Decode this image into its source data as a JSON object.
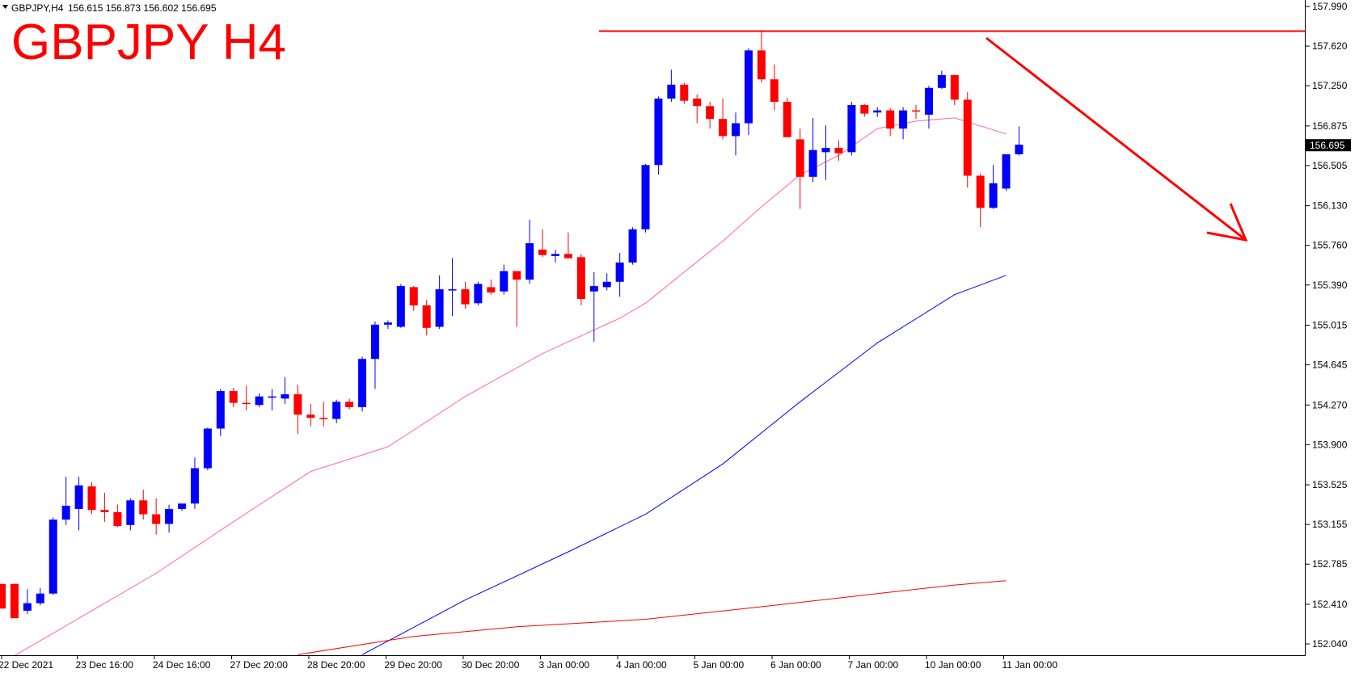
{
  "header": {
    "symbol_info": "GBPJPY,H4",
    "ohlc_text": "156.615 156.873 156.602 156.695",
    "title": "GBPJPY H4"
  },
  "colors": {
    "bull": "#0000ff",
    "bear": "#ff0000",
    "ma_fast": "#ff66aa",
    "ma_mid": "#0000ff",
    "ma_slow": "#ff0000",
    "annotation": "#ff0000",
    "price_tag_bg": "#000000",
    "price_tag_fg": "#ffffff"
  },
  "chart_data": {
    "type": "candlestick",
    "title": "GBPJPY H4",
    "ylim": [
      151.96,
      158.05
    ],
    "y_ticks": [
      "157.990",
      "157.620",
      "157.250",
      "156.875",
      "156.505",
      "156.130",
      "155.760",
      "155.390",
      "155.015",
      "154.645",
      "154.270",
      "153.900",
      "153.525",
      "153.155",
      "152.785",
      "152.410",
      "152.040"
    ],
    "x_ticks": [
      "22 Dec 2021",
      "23 Dec 16:00",
      "24 Dec 16:00",
      "27 Dec 20:00",
      "28 Dec 20:00",
      "29 Dec 20:00",
      "30 Dec 20:00",
      "3 Jan 00:00",
      "4 Jan 00:00",
      "5 Jan 00:00",
      "6 Jan 00:00",
      "7 Jan 00:00",
      "10 Jan 00:00",
      "11 Jan 00:00"
    ],
    "current_price": "156.695",
    "candles": [
      {
        "o": 152.6,
        "h": 152.6,
        "l": 152.37,
        "c": 152.37
      },
      {
        "o": 152.6,
        "h": 152.6,
        "l": 152.28,
        "c": 152.28
      },
      {
        "o": 152.35,
        "h": 152.55,
        "l": 152.32,
        "c": 152.42
      },
      {
        "o": 152.42,
        "h": 152.56,
        "l": 152.4,
        "c": 152.51
      },
      {
        "o": 152.51,
        "h": 153.22,
        "l": 152.5,
        "c": 153.2
      },
      {
        "o": 153.2,
        "h": 153.6,
        "l": 153.15,
        "c": 153.33
      },
      {
        "o": 153.3,
        "h": 153.6,
        "l": 153.1,
        "c": 153.52
      },
      {
        "o": 153.51,
        "h": 153.55,
        "l": 153.25,
        "c": 153.29
      },
      {
        "o": 153.29,
        "h": 153.45,
        "l": 153.18,
        "c": 153.27
      },
      {
        "o": 153.27,
        "h": 153.34,
        "l": 153.13,
        "c": 153.14
      },
      {
        "o": 153.15,
        "h": 153.4,
        "l": 153.1,
        "c": 153.38
      },
      {
        "o": 153.38,
        "h": 153.48,
        "l": 153.2,
        "c": 153.25
      },
      {
        "o": 153.25,
        "h": 153.4,
        "l": 153.06,
        "c": 153.16
      },
      {
        "o": 153.16,
        "h": 153.34,
        "l": 153.08,
        "c": 153.3
      },
      {
        "o": 153.3,
        "h": 153.35,
        "l": 153.28,
        "c": 153.35
      },
      {
        "o": 153.35,
        "h": 153.78,
        "l": 153.3,
        "c": 153.68
      },
      {
        "o": 153.68,
        "h": 154.06,
        "l": 153.66,
        "c": 154.05
      },
      {
        "o": 154.05,
        "h": 154.42,
        "l": 153.98,
        "c": 154.4
      },
      {
        "o": 154.4,
        "h": 154.43,
        "l": 154.25,
        "c": 154.29
      },
      {
        "o": 154.29,
        "h": 154.45,
        "l": 154.22,
        "c": 154.28
      },
      {
        "o": 154.27,
        "h": 154.38,
        "l": 154.25,
        "c": 154.35
      },
      {
        "o": 154.35,
        "h": 154.42,
        "l": 154.22,
        "c": 154.35
      },
      {
        "o": 154.33,
        "h": 154.53,
        "l": 154.28,
        "c": 154.37
      },
      {
        "o": 154.37,
        "h": 154.46,
        "l": 154.0,
        "c": 154.18
      },
      {
        "o": 154.18,
        "h": 154.28,
        "l": 154.07,
        "c": 154.15
      },
      {
        "o": 154.15,
        "h": 154.3,
        "l": 154.07,
        "c": 154.14
      },
      {
        "o": 154.14,
        "h": 154.32,
        "l": 154.1,
        "c": 154.3
      },
      {
        "o": 154.3,
        "h": 154.33,
        "l": 154.23,
        "c": 154.25
      },
      {
        "o": 154.25,
        "h": 154.72,
        "l": 154.21,
        "c": 154.7
      },
      {
        "o": 154.7,
        "h": 155.05,
        "l": 154.42,
        "c": 155.02
      },
      {
        "o": 155.02,
        "h": 155.06,
        "l": 154.98,
        "c": 155.04
      },
      {
        "o": 155.0,
        "h": 155.4,
        "l": 154.99,
        "c": 155.38
      },
      {
        "o": 155.37,
        "h": 155.38,
        "l": 155.15,
        "c": 155.2
      },
      {
        "o": 155.2,
        "h": 155.25,
        "l": 154.92,
        "c": 154.99
      },
      {
        "o": 155.0,
        "h": 155.48,
        "l": 154.98,
        "c": 155.35
      },
      {
        "o": 155.35,
        "h": 155.64,
        "l": 155.1,
        "c": 155.35
      },
      {
        "o": 155.35,
        "h": 155.42,
        "l": 155.17,
        "c": 155.21
      },
      {
        "o": 155.22,
        "h": 155.42,
        "l": 155.2,
        "c": 155.4
      },
      {
        "o": 155.37,
        "h": 155.44,
        "l": 155.3,
        "c": 155.32
      },
      {
        "o": 155.33,
        "h": 155.58,
        "l": 155.3,
        "c": 155.52
      },
      {
        "o": 155.52,
        "h": 155.52,
        "l": 155.0,
        "c": 155.44
      },
      {
        "o": 155.44,
        "h": 156.0,
        "l": 155.4,
        "c": 155.78
      },
      {
        "o": 155.72,
        "h": 155.91,
        "l": 155.65,
        "c": 155.67
      },
      {
        "o": 155.66,
        "h": 155.72,
        "l": 155.6,
        "c": 155.68
      },
      {
        "o": 155.68,
        "h": 155.88,
        "l": 155.64,
        "c": 155.64
      },
      {
        "o": 155.65,
        "h": 155.68,
        "l": 155.2,
        "c": 155.26
      },
      {
        "o": 155.33,
        "h": 155.51,
        "l": 154.86,
        "c": 155.38
      },
      {
        "o": 155.37,
        "h": 155.5,
        "l": 155.34,
        "c": 155.42
      },
      {
        "o": 155.42,
        "h": 155.69,
        "l": 155.28,
        "c": 155.6
      },
      {
        "o": 155.6,
        "h": 155.93,
        "l": 155.58,
        "c": 155.91
      },
      {
        "o": 155.91,
        "h": 156.52,
        "l": 155.88,
        "c": 156.51
      },
      {
        "o": 156.51,
        "h": 157.15,
        "l": 156.42,
        "c": 157.13
      },
      {
        "o": 157.13,
        "h": 157.4,
        "l": 157.1,
        "c": 157.26
      },
      {
        "o": 157.26,
        "h": 157.28,
        "l": 157.08,
        "c": 157.11
      },
      {
        "o": 157.13,
        "h": 157.17,
        "l": 156.9,
        "c": 157.06
      },
      {
        "o": 157.06,
        "h": 157.1,
        "l": 156.85,
        "c": 156.94
      },
      {
        "o": 156.94,
        "h": 157.13,
        "l": 156.75,
        "c": 156.78
      },
      {
        "o": 156.78,
        "h": 157.0,
        "l": 156.6,
        "c": 156.9
      },
      {
        "o": 156.9,
        "h": 157.6,
        "l": 156.79,
        "c": 157.58
      },
      {
        "o": 157.58,
        "h": 157.76,
        "l": 157.28,
        "c": 157.31
      },
      {
        "o": 157.31,
        "h": 157.45,
        "l": 157.02,
        "c": 157.1
      },
      {
        "o": 157.1,
        "h": 157.14,
        "l": 156.77,
        "c": 156.77
      },
      {
        "o": 156.75,
        "h": 156.85,
        "l": 156.1,
        "c": 156.4
      },
      {
        "o": 156.4,
        "h": 156.95,
        "l": 156.35,
        "c": 156.65
      },
      {
        "o": 156.63,
        "h": 156.88,
        "l": 156.37,
        "c": 156.67
      },
      {
        "o": 156.67,
        "h": 156.74,
        "l": 156.55,
        "c": 156.62
      },
      {
        "o": 156.63,
        "h": 157.1,
        "l": 156.6,
        "c": 157.07
      },
      {
        "o": 157.07,
        "h": 157.08,
        "l": 156.96,
        "c": 156.99
      },
      {
        "o": 157.0,
        "h": 157.05,
        "l": 156.96,
        "c": 157.02
      },
      {
        "o": 157.02,
        "h": 157.04,
        "l": 156.78,
        "c": 156.85
      },
      {
        "o": 156.85,
        "h": 157.05,
        "l": 156.75,
        "c": 157.02
      },
      {
        "o": 157.02,
        "h": 157.07,
        "l": 156.94,
        "c": 157.01
      },
      {
        "o": 156.98,
        "h": 157.25,
        "l": 156.85,
        "c": 157.23
      },
      {
        "o": 157.23,
        "h": 157.39,
        "l": 157.22,
        "c": 157.35
      },
      {
        "o": 157.35,
        "h": 157.35,
        "l": 157.07,
        "c": 157.12
      },
      {
        "o": 157.12,
        "h": 157.19,
        "l": 156.3,
        "c": 156.41
      },
      {
        "o": 156.41,
        "h": 156.43,
        "l": 155.93,
        "c": 156.11
      },
      {
        "o": 156.11,
        "h": 156.51,
        "l": 156.1,
        "c": 156.34
      },
      {
        "o": 156.29,
        "h": 156.61,
        "l": 156.27,
        "c": 156.61
      },
      {
        "o": 156.61,
        "h": 156.87,
        "l": 156.6,
        "c": 156.7
      }
    ],
    "series": [
      {
        "color": "#ff66aa",
        "values": [
          [
            1,
            151.93
          ],
          [
            6,
            152.28
          ],
          [
            12,
            152.7
          ],
          [
            18,
            153.18
          ],
          [
            24,
            153.65
          ],
          [
            30,
            153.88
          ],
          [
            36,
            154.35
          ],
          [
            42,
            154.75
          ],
          [
            48,
            155.08
          ],
          [
            50,
            155.22
          ],
          [
            56,
            155.8
          ],
          [
            59,
            156.12
          ],
          [
            62,
            156.42
          ],
          [
            65,
            156.6
          ],
          [
            68,
            156.85
          ],
          [
            71,
            156.92
          ],
          [
            74,
            156.95
          ],
          [
            78,
            156.8
          ]
        ]
      },
      {
        "color": "#0000ff",
        "values": [
          [
            28,
            151.94
          ],
          [
            36,
            152.45
          ],
          [
            44,
            152.9
          ],
          [
            50,
            153.25
          ],
          [
            56,
            153.72
          ],
          [
            62,
            154.3
          ],
          [
            68,
            154.85
          ],
          [
            74,
            155.3
          ],
          [
            78,
            155.48
          ]
        ]
      },
      {
        "color": "#ff0000",
        "values": [
          [
            23,
            151.94
          ],
          [
            32,
            152.11
          ],
          [
            40,
            152.2
          ],
          [
            50,
            152.27
          ],
          [
            60,
            152.4
          ],
          [
            68,
            152.51
          ],
          [
            74,
            152.59
          ],
          [
            78,
            152.63
          ]
        ]
      }
    ]
  }
}
